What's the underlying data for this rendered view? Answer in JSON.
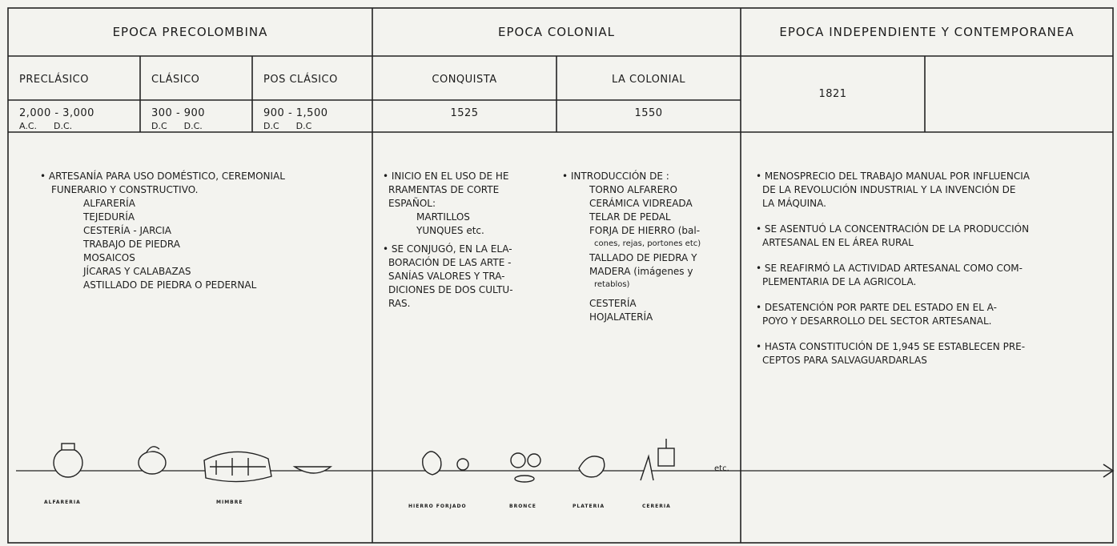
{
  "header": {
    "columns": [
      {
        "title": "EPOCA PRECOLOMBINA",
        "periods": [
          {
            "name": "PRECLÁSICO",
            "dates": "2,000 - 3,000",
            "eras": "A.C.      D.C."
          },
          {
            "name": "CLÁSICO",
            "dates": "300 - 900",
            "eras": "D.C      D.C."
          },
          {
            "name": "POS CLÁSICO",
            "dates": "900 - 1,500",
            "eras": "D.C      D.C"
          }
        ]
      },
      {
        "title": "EPOCA COLONIAL",
        "periods": [
          {
            "name": "CONQUISTA",
            "dates": "1525"
          },
          {
            "name": "LA COLONIAL",
            "dates": "1550"
          }
        ]
      },
      {
        "title": "EPOCA INDEPENDIENTE Y CONTEMPORANEA",
        "periods": [
          {
            "dates": "1821"
          }
        ]
      }
    ]
  },
  "content": {
    "precolombina": {
      "intro": "• ARTESANÍA PARA USO DOMÉSTICO, CEREMONIAL",
      "intro2": "FUNERARIO Y CONSTRUCTIVO.",
      "items": [
        "ALFARERÍA",
        "TEJEDURÍA",
        "CESTERÍA - JARCIA",
        "TRABAJO DE PIEDRA",
        "MOSAICOS",
        "JÍCARAS Y CALABAZAS",
        "ASTILLADO DE PIEDRA O PEDERNAL"
      ]
    },
    "conquista": {
      "lines": [
        "• INICIO EN EL USO DE HE",
        "RRAMENTAS DE CORTE",
        "ESPAÑOL:"
      ],
      "items": [
        "MARTILLOS",
        "YUNQUES etc."
      ],
      "lines2": [
        "• SE CONJUGÓ, EN LA ELA-",
        "BORACIÓN DE LAS ARTE -",
        "SANÍAS VALORES Y TRA-",
        "DICIONES DE DOS CULTU-",
        "RAS."
      ]
    },
    "colonial": {
      "intro": "• INTRODUCCIÓN DE :",
      "items": [
        "TORNO ALFARERO",
        "CERÁMICA VIDREADA",
        "TELAR DE PEDAL",
        "FORJA DE HIERRO (bal-",
        "cones, rejas, portones etc)",
        "TALLADO DE PIEDRA Y",
        "MADERA (imágenes y",
        "retablos)",
        "CESTERÍA",
        "HOJALATERÍA"
      ]
    },
    "independiente": {
      "bullets": [
        [
          "• MENOSPRECIO DEL TRABAJO MANUAL POR INFLUENCIA",
          "DE LA REVOLUCIÓN INDUSTRIAL Y LA INVENCIÓN DE",
          "LA MÁQUINA."
        ],
        [
          "• SE ASENTUÓ LA CONCENTRACIÓN DE LA PRODUCCIÓN",
          "ARTESANAL EN EL ÁREA RURAL"
        ],
        [
          "• SE REAFIRMÓ LA ACTIVIDAD ARTESANAL COMO COM-",
          "PLEMENTARIA DE LA AGRICOLA."
        ],
        [
          "• DESATENCIÓN POR PARTE DEL ESTADO EN EL A-",
          "POYO Y DESARROLLO DEL SECTOR ARTESANAL."
        ],
        [
          "• HASTA CONSTITUCIÓN DE 1,945 SE ESTABLECEN PRE-",
          "CEPTOS PARA SALVAGUARDARLAS"
        ]
      ]
    }
  },
  "timeline": {
    "labels": [
      "ALFARERIA",
      "MIMBRE",
      "HIERRO FORJADO",
      "BRONCE",
      "PLATERIA",
      "CERERIA"
    ],
    "end": "etc."
  }
}
